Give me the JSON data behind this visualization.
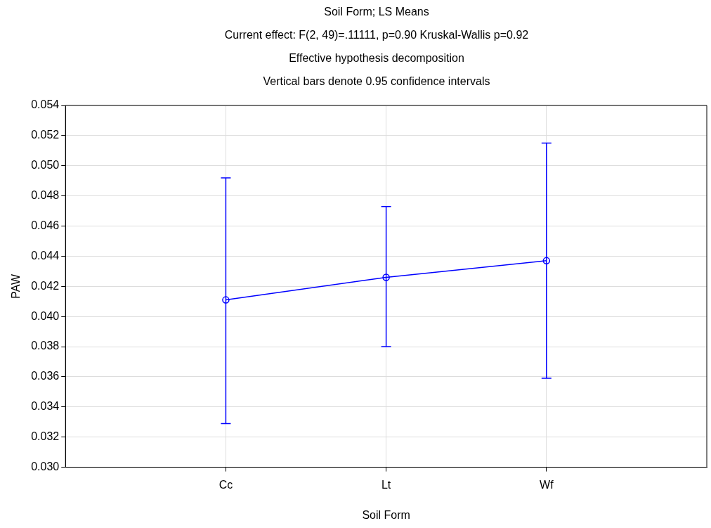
{
  "chart_data": {
    "type": "line",
    "title": "Soil Form; LS Means",
    "subtitle": "Current effect: F(2, 49)=.11111, p=0.90 Kruskal-Wallis p=0.92",
    "annotations": [
      "Effective hypothesis decomposition",
      "Vertical bars denote 0.95 confidence intervals"
    ],
    "xlabel": "Soil Form",
    "ylabel": "PAW",
    "categories": [
      "Cc",
      "Lt",
      "Wf"
    ],
    "series": [
      {
        "color": "#0000ff",
        "values": [
          0.0411,
          0.0426,
          0.0437
        ],
        "errors": [
          [
            0.0329,
            0.0492
          ],
          [
            0.038,
            0.0473
          ],
          [
            0.0359,
            0.0515
          ]
        ]
      }
    ],
    "ylim": [
      0.03,
      0.054
    ],
    "yticks": [
      {
        "value": 0.03,
        "label": "0.030"
      },
      0.032,
      0.034,
      0.036,
      0.038,
      {
        "value": 0.04,
        "label": "0.040"
      },
      0.042,
      0.044,
      0.046,
      0.048,
      {
        "value": 0.05,
        "label": "0.050"
      },
      0.052,
      0.054
    ],
    "grid": true,
    "marker": "circle",
    "line_style": "solid",
    "legend": false
  }
}
